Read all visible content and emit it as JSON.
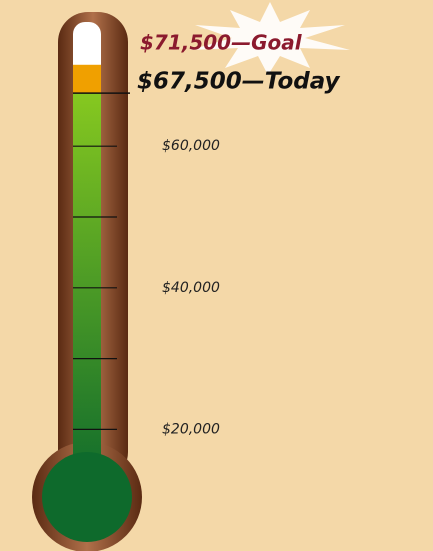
{
  "chart_data": {
    "type": "thermometer",
    "goal": {
      "value": 71500,
      "label": "$71,500—Goal",
      "color": "#f0a000"
    },
    "today": {
      "value": 67500,
      "label": "$67,500—Today",
      "color": "#3d9a2a"
    },
    "ylim": [
      0,
      75000
    ],
    "yticks": [
      {
        "value": 60000,
        "label": "$60,000"
      },
      {
        "value": 40000,
        "label": "$40,000"
      },
      {
        "value": 20000,
        "label": "$20,000"
      }
    ],
    "minor_ticks": [
      50000,
      30000
    ]
  }
}
